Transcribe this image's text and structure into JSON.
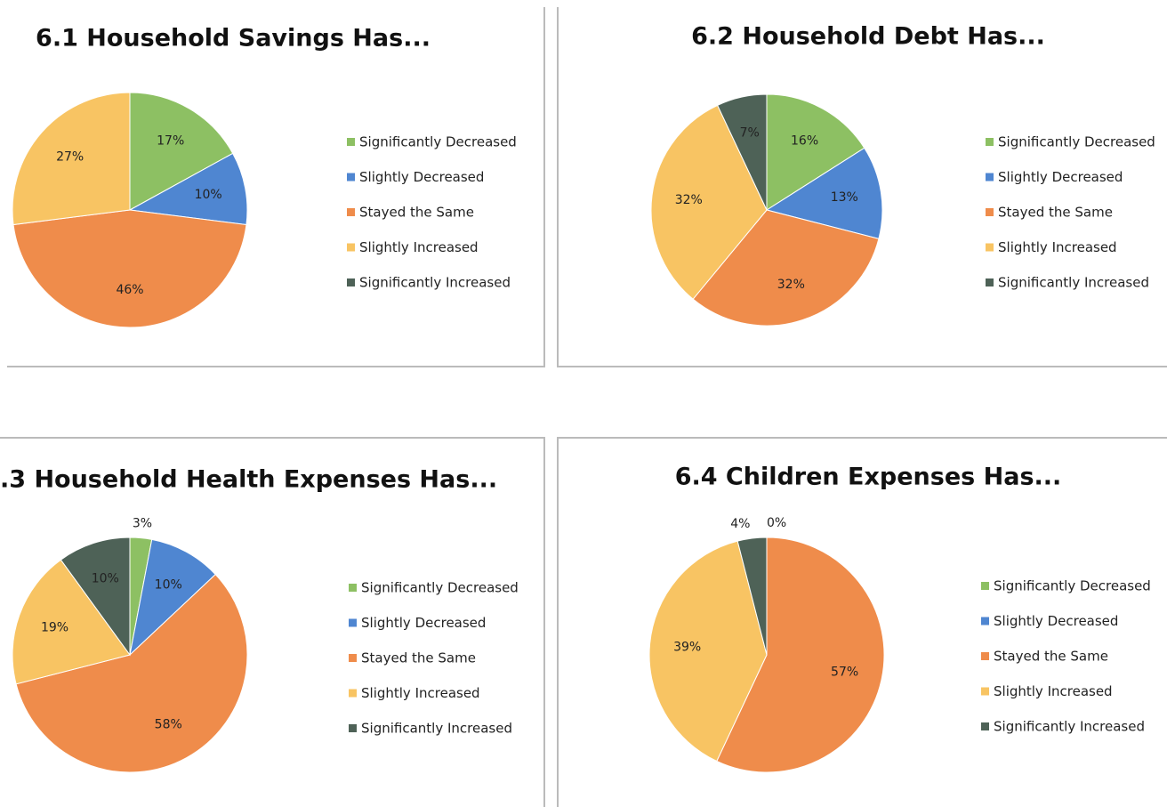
{
  "chart_data": [
    {
      "type": "pie",
      "title": "6.1 Household Savings Has...",
      "categories": [
        "Significantly Decreased",
        "Slightly Decreased",
        "Stayed the Same",
        "Slightly Increased",
        "Significantly Increased"
      ],
      "values": [
        17,
        10,
        46,
        27,
        0
      ],
      "value_labels": [
        "17%",
        "10%",
        "46%",
        "27%",
        null
      ],
      "colors": [
        "#8dc063",
        "#4f86d1",
        "#ef8c4b",
        "#f8c463",
        "#4e6257"
      ]
    },
    {
      "type": "pie",
      "title": "6.2 Household Debt Has...",
      "categories": [
        "Significantly Decreased",
        "Slightly Decreased",
        "Stayed the Same",
        "Slightly Increased",
        "Significantly Increased"
      ],
      "values": [
        16,
        13,
        32,
        32,
        7
      ],
      "value_labels": [
        "16%",
        "13%",
        "32%",
        "32%",
        "7%"
      ],
      "colors": [
        "#8dc063",
        "#4f86d1",
        "#ef8c4b",
        "#f8c463",
        "#4e6257"
      ]
    },
    {
      "type": "pie",
      "title": ".3 Household Health Expenses Has...",
      "categories": [
        "Significantly Decreased",
        "Slightly Decreased",
        "Stayed the Same",
        "Slightly Increased",
        "Significantly Increased"
      ],
      "values": [
        3,
        10,
        58,
        19,
        10
      ],
      "value_labels": [
        "3%",
        "10%",
        "58%",
        "19%",
        "10%"
      ],
      "colors": [
        "#8dc063",
        "#4f86d1",
        "#ef8c4b",
        "#f8c463",
        "#4e6257"
      ]
    },
    {
      "type": "pie",
      "title": "6.4 Children Expenses Has...",
      "categories": [
        "Significantly Decreased",
        "Slightly Decreased",
        "Stayed the Same",
        "Slightly Increased",
        "Significantly Increased"
      ],
      "values": [
        0,
        0,
        57,
        39,
        4
      ],
      "value_labels": [
        "0%",
        null,
        "57%",
        "39%",
        "4%"
      ],
      "colors": [
        "#8dc063",
        "#4f86d1",
        "#ef8c4b",
        "#f8c463",
        "#4e6257"
      ]
    }
  ]
}
